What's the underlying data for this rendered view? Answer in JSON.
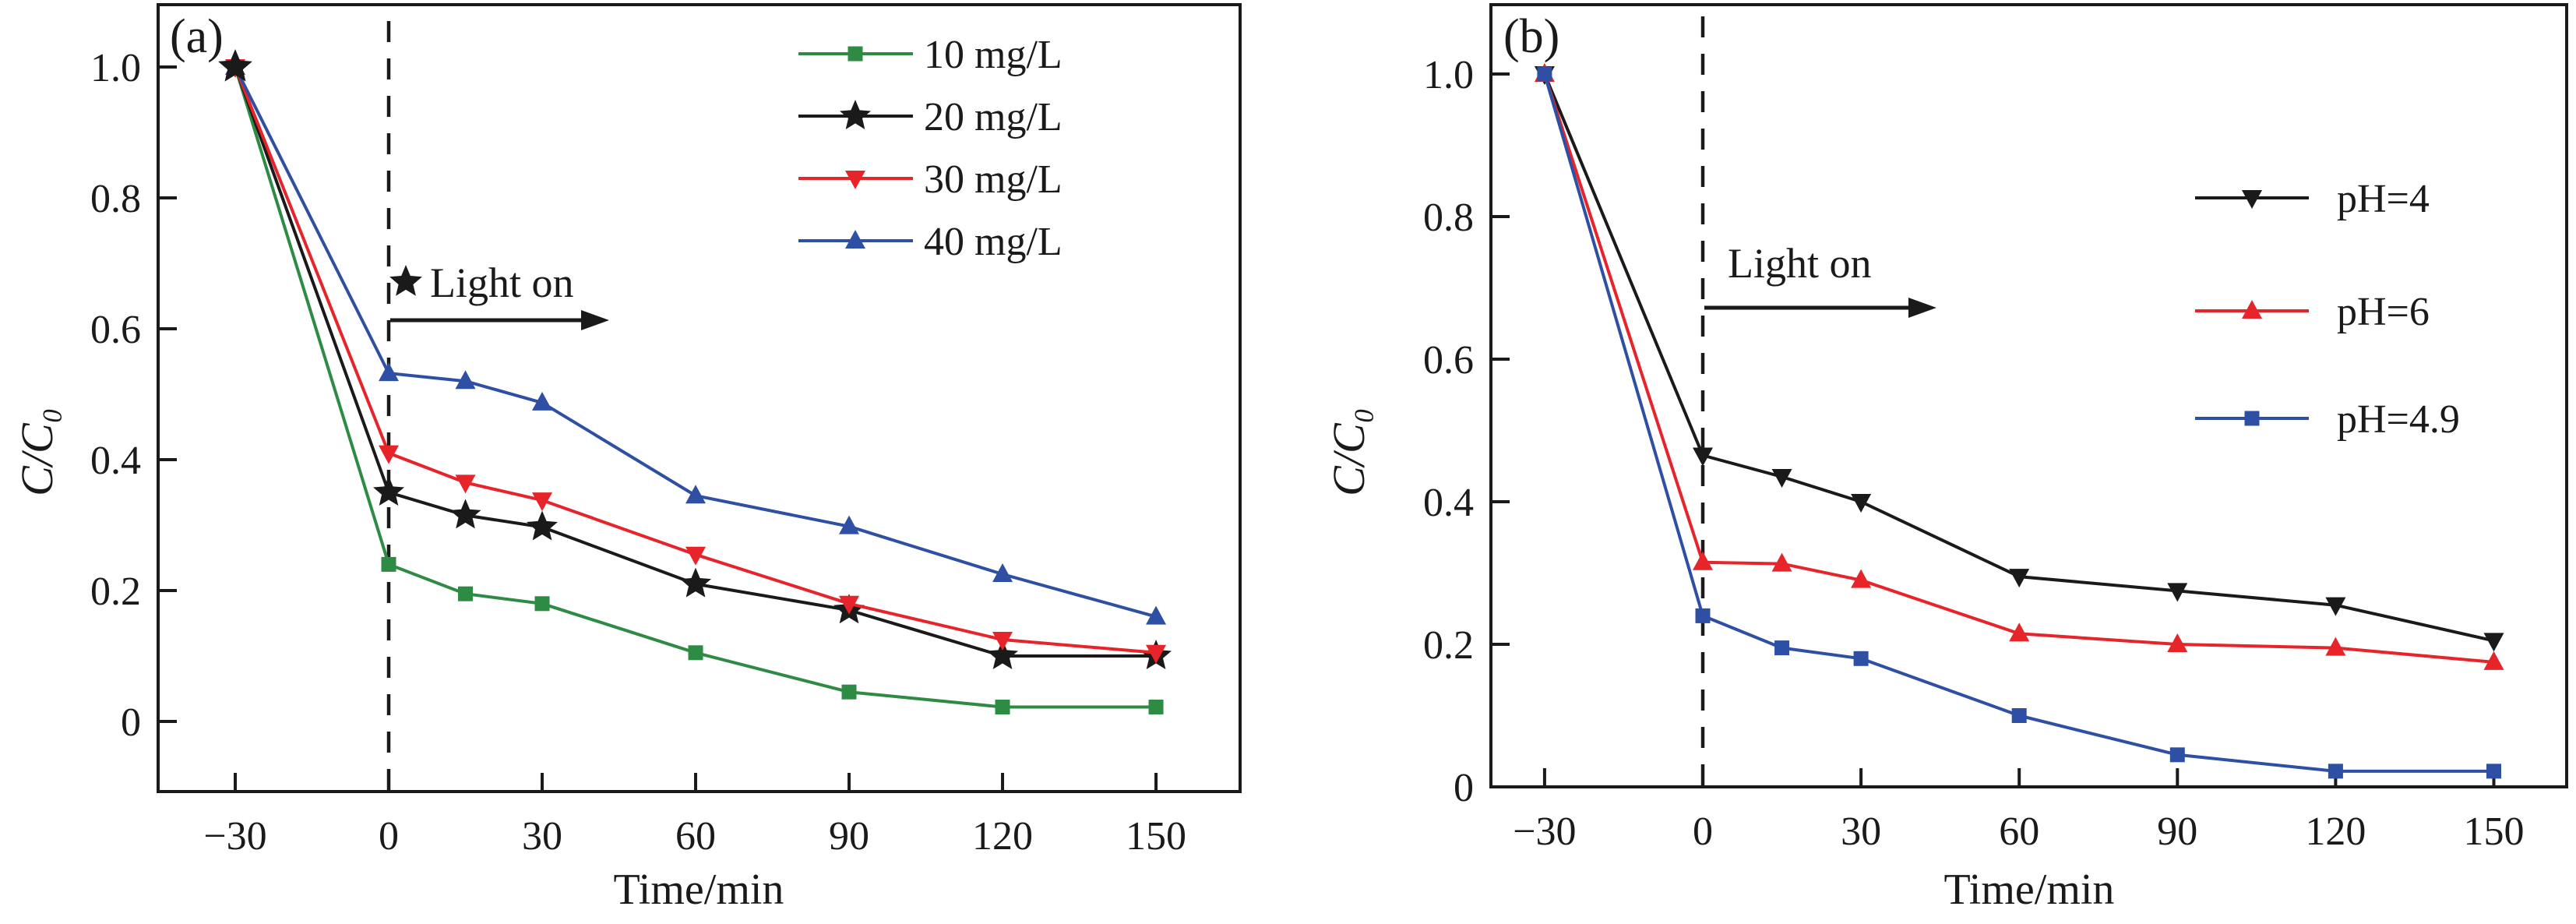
{
  "figure": {
    "background": "#ffffff",
    "frame_color": "#1a1a1a",
    "dashed_divider": "light-on boundary at t=0"
  },
  "chart_data": [
    {
      "type": "line",
      "panel_tag": "(a)",
      "xlabel": "Time/min",
      "ylabel": "C/C₀",
      "x": [
        -30,
        0,
        15,
        30,
        60,
        90,
        120,
        150
      ],
      "x_tick_values": [
        -30,
        0,
        30,
        60,
        90,
        120,
        150
      ],
      "x_tick_labels": [
        "−30",
        "0",
        "30",
        "60",
        "90",
        "120",
        "150"
      ],
      "y_tick_values": [
        0,
        0.2,
        0.4,
        0.6,
        0.8,
        1.0
      ],
      "y_tick_labels": [
        "0",
        "0.2",
        "0.4",
        "0.6",
        "0.8",
        "1.0"
      ],
      "xlim": [
        -45,
        166
      ],
      "ylim": [
        -0.107,
        1.095
      ],
      "grid": false,
      "legend_position": "upper-right-inside",
      "annotation": {
        "text": "Light on",
        "star_prefix": true,
        "x_data": 3,
        "y_data": 0.672,
        "arrow_y_data": 0.613,
        "arrow_x_from": 0,
        "arrow_x_to": 42
      },
      "light_line_x": 0,
      "series": [
        {
          "name": "10 mg/L",
          "color": "#2e8b44",
          "marker": "square",
          "values": [
            1.0,
            0.24,
            0.195,
            0.18,
            0.105,
            0.045,
            0.022,
            0.022
          ]
        },
        {
          "name": "20 mg/L",
          "color": "#1a1a1a",
          "marker": "star",
          "values": [
            1.0,
            0.35,
            0.315,
            0.297,
            0.21,
            0.17,
            0.1,
            0.1
          ]
        },
        {
          "name": "30 mg/L",
          "color": "#e62429",
          "marker": "triangle-down",
          "values": [
            1.0,
            0.41,
            0.365,
            0.338,
            0.255,
            0.18,
            0.125,
            0.105
          ]
        },
        {
          "name": "40 mg/L",
          "color": "#2e4fa4",
          "marker": "triangle-up",
          "values": [
            1.0,
            0.532,
            0.52,
            0.487,
            0.345,
            0.298,
            0.225,
            0.16
          ]
        }
      ]
    },
    {
      "type": "line",
      "panel_tag": "(b)",
      "xlabel": "Time/min",
      "ylabel": "C/C₀",
      "x": [
        -30,
        0,
        15,
        30,
        60,
        90,
        120,
        150
      ],
      "x_tick_values": [
        -30,
        0,
        30,
        60,
        90,
        120,
        150
      ],
      "x_tick_labels": [
        "−30",
        "0",
        "30",
        "60",
        "90",
        "120",
        "150"
      ],
      "y_tick_values": [
        0,
        0.2,
        0.4,
        0.6,
        0.8,
        1.0
      ],
      "y_tick_labels": [
        "0",
        "0.2",
        "0.4",
        "0.6",
        "0.8",
        "1.0"
      ],
      "xlim": [
        -41,
        164
      ],
      "ylim": [
        0,
        1.095
      ],
      "grid": false,
      "legend_position": "upper-right-inside",
      "annotation": {
        "text": "Light on",
        "star_prefix": false,
        "x_data": 5,
        "y_data": 0.735,
        "arrow_y_data": 0.672,
        "arrow_x_from": 0,
        "arrow_x_to": 44
      },
      "light_line_x": 0,
      "series": [
        {
          "name": "pH=4",
          "color": "#1a1a1a",
          "marker": "triangle-down",
          "values": [
            1.0,
            0.465,
            0.435,
            0.4,
            0.295,
            0.275,
            0.255,
            0.205
          ]
        },
        {
          "name": "pH=6",
          "color": "#e62429",
          "marker": "triangle-up",
          "values": [
            1.0,
            0.315,
            0.313,
            0.29,
            0.215,
            0.2,
            0.195,
            0.175
          ]
        },
        {
          "name": "pH=4.9",
          "color": "#2e4fa4",
          "marker": "square",
          "values": [
            1.0,
            0.24,
            0.195,
            0.18,
            0.1,
            0.045,
            0.022,
            0.022
          ]
        }
      ]
    }
  ]
}
